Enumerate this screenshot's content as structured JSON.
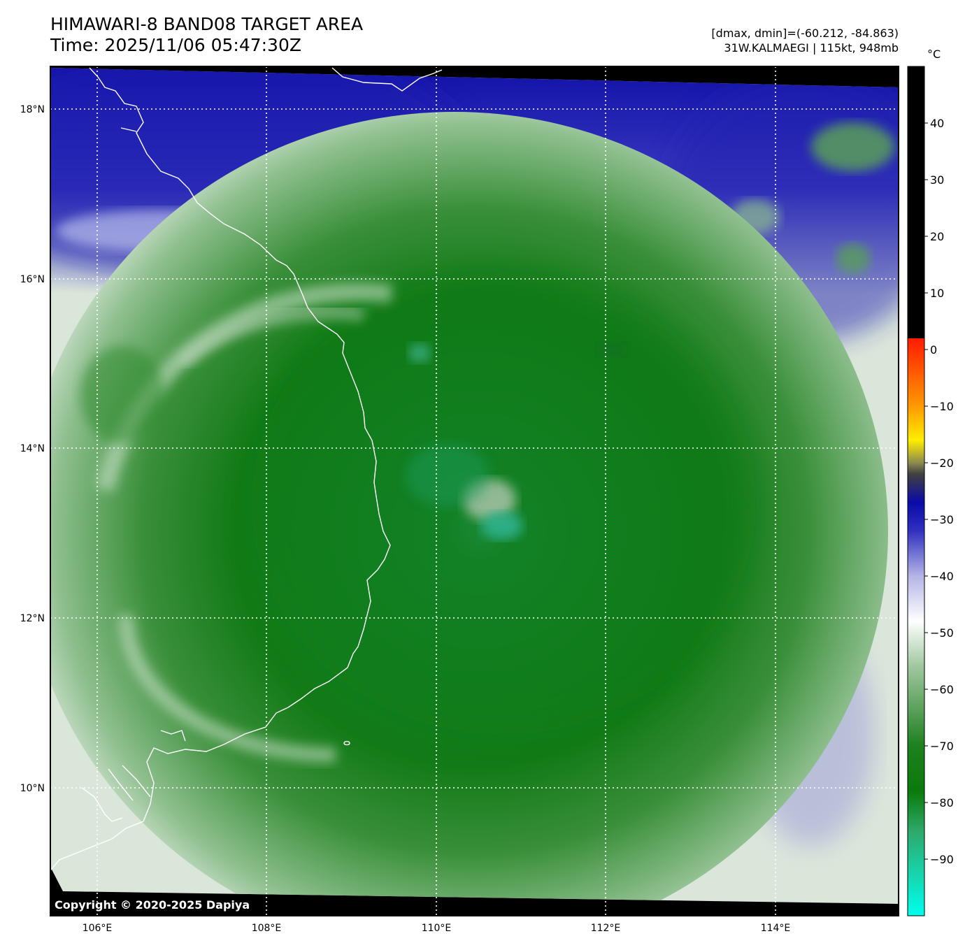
{
  "title": {
    "line1": "HIMAWARI-8 BAND08 TARGET AREA",
    "line2": "Time: 2025/11/06 05:47:30Z"
  },
  "info": {
    "range": "[dmax, dmin]=(-60.212, -84.863)",
    "storm": "31W.KALMAEGI | 115kt, 948mb"
  },
  "colorbar": {
    "unit": "°C",
    "ticks": [
      "40",
      "30",
      "20",
      "10",
      "0",
      "−10",
      "−20",
      "−30",
      "−40",
      "−50",
      "−60",
      "−70",
      "−80",
      "−90"
    ],
    "stops": [
      {
        "value": 2,
        "color": "#ff1a00"
      },
      {
        "value": -10,
        "color": "#ff9900"
      },
      {
        "value": -16,
        "color": "#ffee00"
      },
      {
        "value": -20,
        "color": "#8c8a50"
      },
      {
        "value": -22,
        "color": "#404040"
      },
      {
        "value": -27,
        "color": "#0a0aa8"
      },
      {
        "value": -32,
        "color": "#3030c0"
      },
      {
        "value": -40,
        "color": "#b4b4e6"
      },
      {
        "value": -48,
        "color": "#ffffff"
      },
      {
        "value": -56,
        "color": "#9fc79f"
      },
      {
        "value": -70,
        "color": "#1e801e"
      },
      {
        "value": -78,
        "color": "#0a7a0a"
      },
      {
        "value": -85,
        "color": "#2ea86a"
      },
      {
        "value": -100,
        "color": "#00ffee"
      }
    ],
    "warm_color": "#000000"
  },
  "axes": {
    "lon_labels": [
      "106°E",
      "108°E",
      "110°E",
      "112°E",
      "114°E"
    ],
    "lat_labels": [
      "18°N",
      "16°N",
      "14°N",
      "12°N",
      "10°N"
    ]
  },
  "copyright": "Copyright © 2020-2025 Dapiya"
}
